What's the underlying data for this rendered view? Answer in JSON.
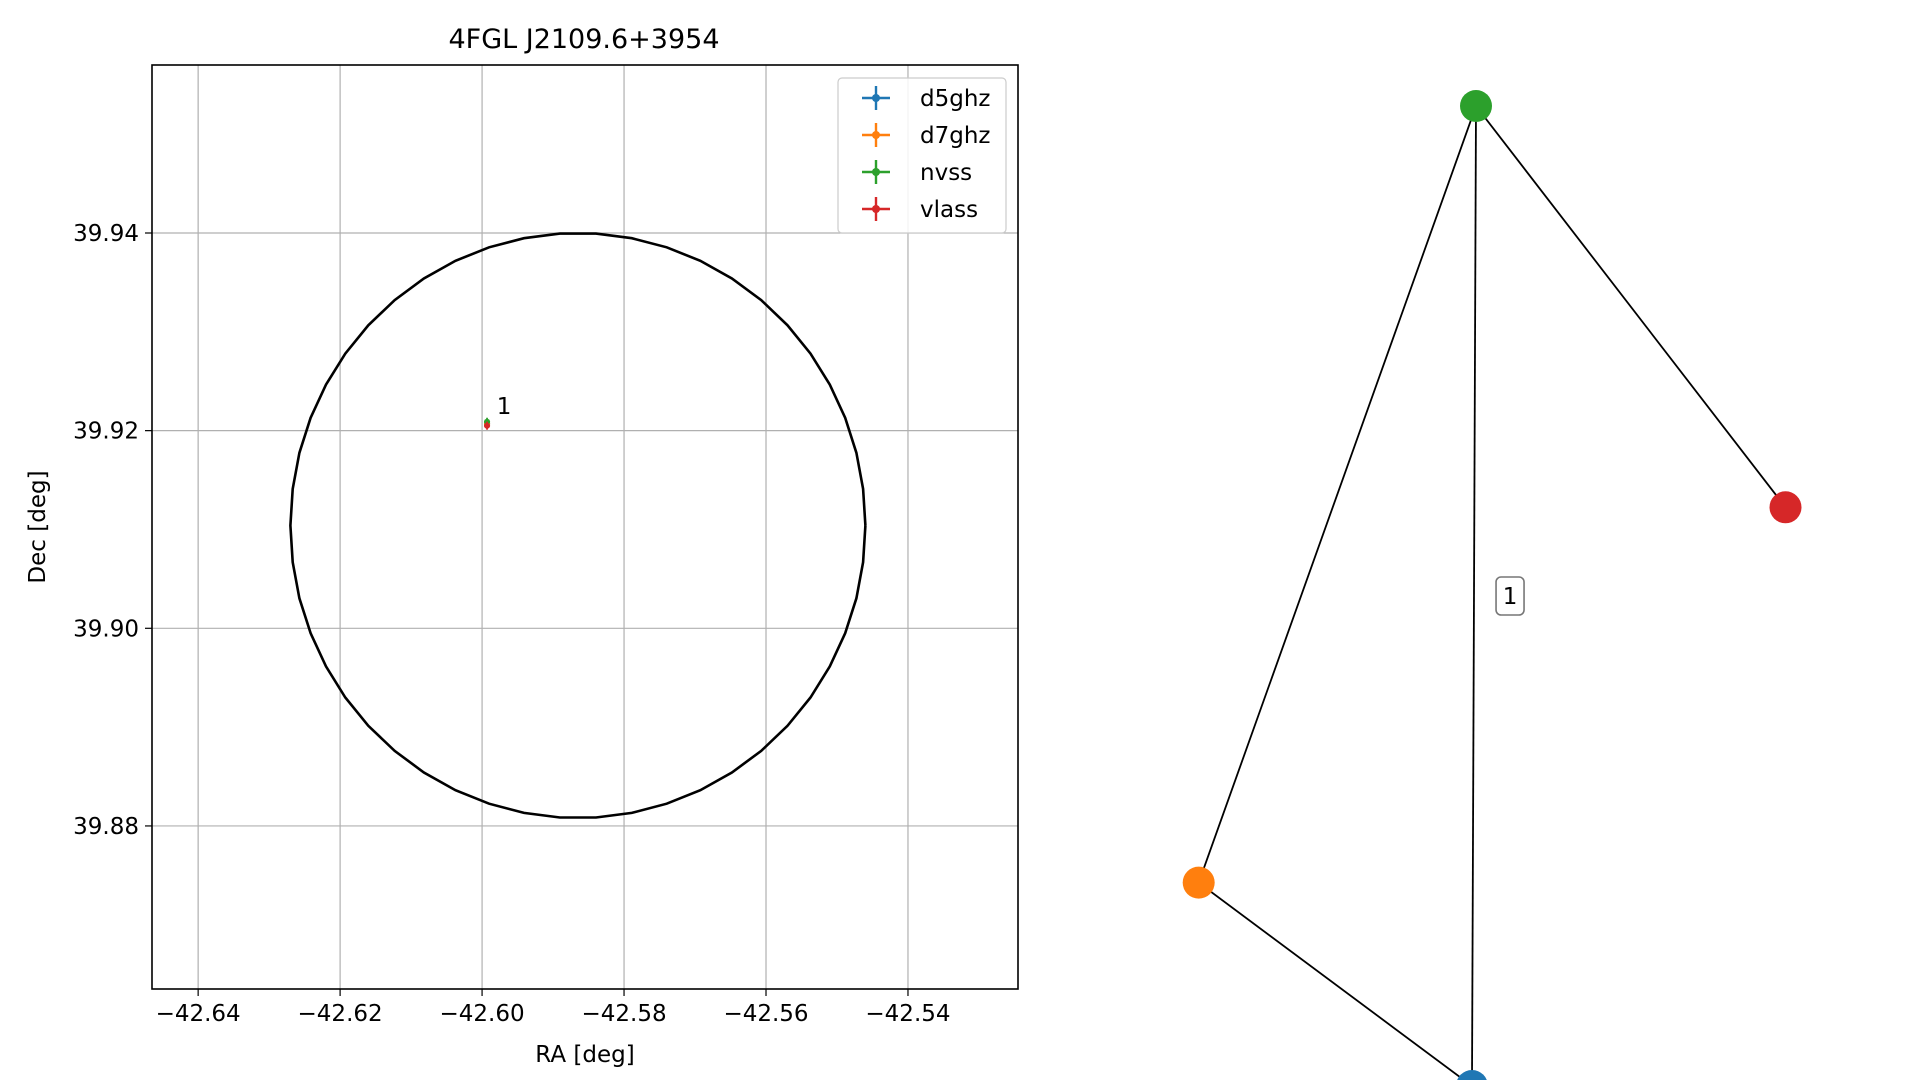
{
  "chart_data": [
    {
      "type": "scatter",
      "title": "4FGL J2109.6+3954",
      "xlabel": "RA [deg]",
      "ylabel": "Dec [deg]",
      "xlim": [
        -42.6465,
        -42.5245
      ],
      "ylim": [
        39.8635,
        39.957
      ],
      "xticks": [
        -42.64,
        -42.62,
        -42.6,
        -42.58,
        -42.56,
        -42.54
      ],
      "xtick_labels": [
        "−42.64",
        "−42.62",
        "−42.60",
        "−42.58",
        "−42.56",
        "−42.54"
      ],
      "yticks": [
        39.88,
        39.9,
        39.92,
        39.94
      ],
      "ytick_labels": [
        "39.88",
        "39.90",
        "39.92",
        "39.94"
      ],
      "grid": true,
      "legend_position": "top-right",
      "circle": {
        "center": [
          -42.5865,
          39.9104
        ],
        "radius_x": 0.0405,
        "radius_y": 0.0296
      },
      "series": [
        {
          "name": "d5ghz",
          "color": "#1f77b4",
          "points": [
            {
              "x": -42.5993,
              "y": 39.9207
            }
          ]
        },
        {
          "name": "d7ghz",
          "color": "#ff7f0e",
          "points": [
            {
              "x": -42.5993,
              "y": 39.9207
            }
          ]
        },
        {
          "name": "nvss",
          "color": "#2ca02c",
          "points": [
            {
              "x": -42.5993,
              "y": 39.9209
            }
          ]
        },
        {
          "name": "vlass",
          "color": "#d62728",
          "points": [
            {
              "x": -42.5993,
              "y": 39.9205
            }
          ]
        }
      ],
      "annotations": [
        {
          "text": "1",
          "x": -42.5985,
          "y": 39.9215
        }
      ]
    },
    {
      "type": "network",
      "nodes": [
        {
          "id": "nvss",
          "color": "#2ca02c",
          "x": 0.0,
          "y": 1.0
        },
        {
          "id": "d7ghz",
          "color": "#ff7f0e",
          "x": -0.896,
          "y": -0.585
        },
        {
          "id": "d5ghz",
          "color": "#1f77b4",
          "x": -0.013,
          "y": -1.0
        },
        {
          "id": "vlass",
          "color": "#d62728",
          "x": 1.0,
          "y": 0.181
        }
      ],
      "edges": [
        {
          "source": "nvss",
          "target": "d7ghz"
        },
        {
          "source": "nvss",
          "target": "d5ghz"
        },
        {
          "source": "nvss",
          "target": "vlass"
        },
        {
          "source": "d7ghz",
          "target": "d5ghz"
        }
      ],
      "edge_labels": [
        {
          "text": "1",
          "x": 0.11,
          "y": 0.0
        }
      ]
    }
  ]
}
